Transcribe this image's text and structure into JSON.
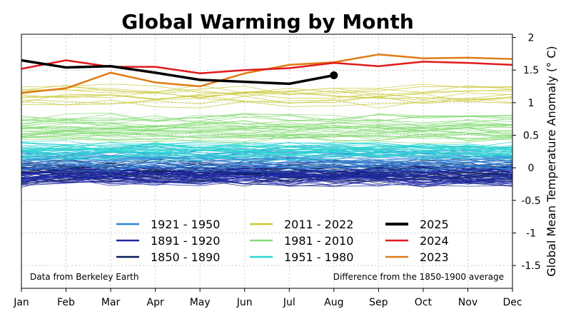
{
  "chart_data": {
    "type": "line",
    "title": "Global Warming by Month",
    "xlabel": "",
    "ylabel": "Global Mean Temperature Anomaly (° C)",
    "categories": [
      "Jan",
      "Feb",
      "Mar",
      "Apr",
      "May",
      "Jun",
      "Jul",
      "Aug",
      "Sep",
      "Oct",
      "Nov",
      "Dec"
    ],
    "yticks": [
      2,
      1.5,
      1,
      0.5,
      0,
      -0.5,
      -1,
      -1.5
    ],
    "ytick_labels": [
      "2",
      "1.5",
      "1",
      "0.5",
      "0",
      "-0.5",
      "-1",
      "-1.5"
    ],
    "ylim": [
      -1.85,
      2.05
    ],
    "grid": true,
    "legend_position": "bottom-center",
    "annotations": {
      "left": "Data from Berkeley Earth",
      "right": "Difference from the 1850-1900 average"
    },
    "series": [
      {
        "name": "2025",
        "color": "#000000",
        "values": [
          1.65,
          1.54,
          1.56,
          1.46,
          1.35,
          1.32,
          1.29,
          1.42,
          null,
          null,
          null,
          null
        ],
        "marker_last": true
      },
      {
        "name": "2024",
        "color": "#e31a1c",
        "values": [
          1.52,
          1.65,
          1.55,
          1.55,
          1.45,
          1.5,
          1.53,
          1.61,
          1.56,
          1.63,
          1.61,
          1.58
        ]
      },
      {
        "name": "2023",
        "color": "#e07b14",
        "values": [
          1.15,
          1.22,
          1.46,
          1.31,
          1.25,
          1.45,
          1.58,
          1.62,
          1.74,
          1.68,
          1.69,
          1.67
        ]
      }
    ],
    "background_groups": [
      {
        "name": "1850 - 1890",
        "color": "#081d58",
        "count": 41,
        "mean": -0.08,
        "spread": 0.13,
        "noise": 0.11
      },
      {
        "name": "1891 - 1920",
        "color": "#2028a8",
        "count": 30,
        "mean": -0.12,
        "spread": 0.12,
        "noise": 0.09
      },
      {
        "name": "1921 - 1950",
        "color": "#3182d6",
        "count": 30,
        "mean": 0.14,
        "spread": 0.13,
        "noise": 0.08
      },
      {
        "name": "1951 - 1980",
        "color": "#2ad4d2",
        "count": 30,
        "mean": 0.25,
        "spread": 0.11,
        "noise": 0.07
      },
      {
        "name": "1981 - 2010",
        "color": "#86dc76",
        "count": 30,
        "mean": 0.62,
        "spread": 0.2,
        "noise": 0.07
      },
      {
        "name": "2011 - 2022",
        "color": "#c8c836",
        "count": 12,
        "mean": 1.1,
        "spread": 0.13,
        "noise": 0.07
      }
    ],
    "legend": {
      "columns": [
        [
          "1921 - 1950",
          "1891 - 1920",
          "1850 - 1890"
        ],
        [
          "2011 - 2022",
          "1981 - 2010",
          "1951 - 1980"
        ],
        [
          "2025",
          "2024",
          "2023"
        ]
      ],
      "colors": {
        "1921 - 1950": "#3182d6",
        "1891 - 1920": "#2028a8",
        "1850 - 1890": "#081d58",
        "2011 - 2022": "#c8c836",
        "1981 - 2010": "#86dc76",
        "1951 - 1980": "#2ad4d2",
        "2025": "#000000",
        "2024": "#e31a1c",
        "2023": "#e07b14"
      }
    }
  }
}
